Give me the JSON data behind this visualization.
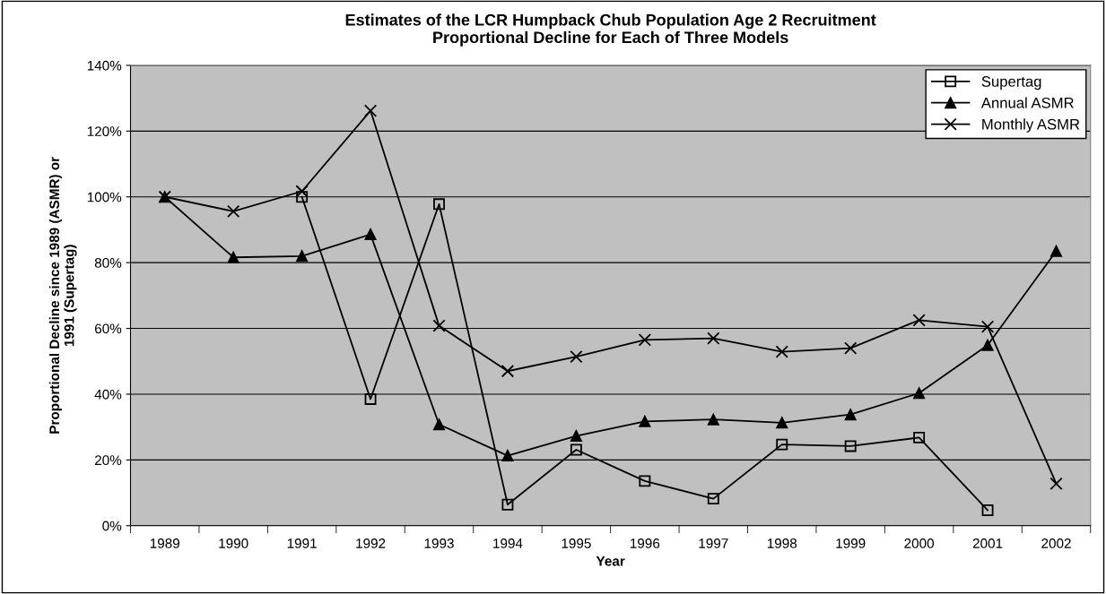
{
  "chart_data": {
    "type": "line",
    "title": "Estimates of the LCR Humpback Chub Population Age 2 Recruitment\nProportional Decline for Each of Three Models",
    "xlabel": "Year",
    "ylabel": "Proportional Decline since 1989 (ASMR) or\n1991 (Supertag)",
    "categories": [
      "1989",
      "1990",
      "1991",
      "1992",
      "1993",
      "1994",
      "1995",
      "1996",
      "1997",
      "1998",
      "1999",
      "2000",
      "2001",
      "2002"
    ],
    "series": [
      {
        "name": "Supertag",
        "color": "#000000",
        "marker": "square",
        "values": [
          null,
          null,
          100,
          38.5,
          97.8,
          6.4,
          23.1,
          13.6,
          8.2,
          24.7,
          24.2,
          26.8,
          4.7,
          null
        ]
      },
      {
        "name": "Annual ASMR",
        "color": "#000000",
        "marker": "triangle",
        "values": [
          100,
          81.6,
          82,
          88.6,
          30.8,
          21.3,
          27.3,
          31.7,
          32.3,
          31.3,
          33.8,
          40.3,
          54.9,
          83.5
        ]
      },
      {
        "name": "Monthly ASMR",
        "color": "#000000",
        "marker": "cross",
        "values": [
          100,
          95.6,
          101.7,
          126.2,
          60.8,
          47,
          51.4,
          56.5,
          57,
          52.9,
          54,
          62.5,
          60.5,
          12.8
        ]
      }
    ],
    "ylim": [
      0,
      140
    ],
    "yticks": [
      {
        "value": 0,
        "label": "0%"
      },
      {
        "value": 20,
        "label": "20%"
      },
      {
        "value": 40,
        "label": "40%"
      },
      {
        "value": 60,
        "label": "60%"
      },
      {
        "value": 80,
        "label": "80%"
      },
      {
        "value": 100,
        "label": "100%"
      },
      {
        "value": 120,
        "label": "120%"
      },
      {
        "value": 140,
        "label": "140%"
      }
    ],
    "grid": "y",
    "legend": "top right",
    "line_style": "solid"
  }
}
